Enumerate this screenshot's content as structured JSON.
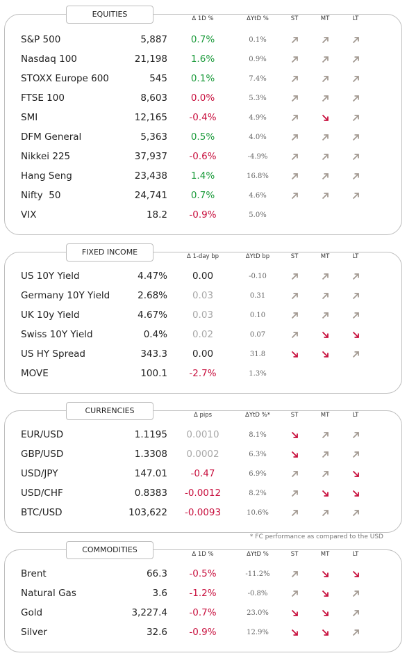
{
  "sections": [
    {
      "title": "EQUITIES",
      "headers": [
        "Δ 1D %",
        "ΔYtD %",
        "ST",
        "MT",
        "LT"
      ],
      "rows": [
        {
          "name": "S&P 500",
          "value": "5,887",
          "change": "0.7%",
          "ytd": "0.1%",
          "change_color": "#1a9a3a",
          "trends": [
            "up",
            "up",
            "up"
          ]
        },
        {
          "name": "Nasdaq 100",
          "value": "21,198",
          "change": "1.6%",
          "ytd": "0.9%",
          "change_color": "#1a9a3a",
          "trends": [
            "up",
            "up",
            "up"
          ]
        },
        {
          "name": "STOXX Europe 600",
          "value": "545",
          "change": "0.1%",
          "ytd": "7.4%",
          "change_color": "#1a9a3a",
          "trends": [
            "up",
            "up",
            "up"
          ]
        },
        {
          "name": "FTSE 100",
          "value": "8,603",
          "change": "0.0%",
          "ytd": "5.3%",
          "change_color": "#c8103e",
          "trends": [
            "up",
            "up",
            "up"
          ]
        },
        {
          "name": "SMI",
          "value": "12,165",
          "change": "-0.4%",
          "ytd": "4.9%",
          "change_color": "#c8103e",
          "trends": [
            "up",
            "down",
            "up"
          ]
        },
        {
          "name": "DFM General",
          "value": "5,363",
          "change": "0.5%",
          "ytd": "4.0%",
          "change_color": "#1a9a3a",
          "trends": [
            "up",
            "up",
            "up"
          ]
        },
        {
          "name": "Nikkei 225",
          "value": "37,937",
          "change": "-0.6%",
          "ytd": "-4.9%",
          "change_color": "#c8103e",
          "trends": [
            "up",
            "up",
            "up"
          ]
        },
        {
          "name": "Hang Seng",
          "value": "23,438",
          "change": "1.4%",
          "ytd": "16.8%",
          "change_color": "#1a9a3a",
          "trends": [
            "up",
            "up",
            "up"
          ]
        },
        {
          "name": "Nifty  50",
          "value": "24,741",
          "change": "0.7%",
          "ytd": "4.6%",
          "change_color": "#1a9a3a",
          "trends": [
            "up",
            "up",
            "up"
          ]
        },
        {
          "name": "VIX",
          "value": "18.2",
          "change": "-0.9%",
          "ytd": "5.0%",
          "change_color": "#c8103e",
          "trends": []
        }
      ]
    },
    {
      "title": "FIXED INCOME",
      "headers": [
        "Δ 1-day bp",
        "ΔYtD bp",
        "ST",
        "MT",
        "LT"
      ],
      "rows": [
        {
          "name": "US 10Y Yield",
          "value": "4.47%",
          "change": "0.00",
          "ytd": "-0.10",
          "change_color": "#222222",
          "trends": [
            "up",
            "up",
            "up"
          ]
        },
        {
          "name": "Germany 10Y Yield",
          "value": "2.68%",
          "change": "0.03",
          "ytd": "0.31",
          "change_color": "#a8a8a8",
          "trends": [
            "up",
            "up",
            "up"
          ]
        },
        {
          "name": "UK 10y Yield",
          "value": "4.67%",
          "change": "0.03",
          "ytd": "0.10",
          "change_color": "#a8a8a8",
          "trends": [
            "up",
            "up",
            "up"
          ]
        },
        {
          "name": "Swiss 10Y Yield",
          "value": "0.4%",
          "change": "0.02",
          "ytd": "0.07",
          "change_color": "#a8a8a8",
          "trends": [
            "up",
            "down",
            "down"
          ]
        },
        {
          "name": "US HY Spread",
          "value": "343.3",
          "change": "0.00",
          "ytd": "31.8",
          "change_color": "#222222",
          "trends": [
            "down",
            "down",
            "up"
          ]
        },
        {
          "name": "MOVE",
          "value": "100.1",
          "change": "-2.7%",
          "ytd": "1.3%",
          "change_color": "#c8103e",
          "trends": []
        }
      ]
    },
    {
      "title": "CURRENCIES",
      "headers": [
        "Δ pips",
        "ΔYtD %*",
        "ST",
        "MT",
        "LT"
      ],
      "rows": [
        {
          "name": "EUR/USD",
          "value": "1.1195",
          "change": "0.0010",
          "ytd": "8.1%",
          "change_color": "#a8a8a8",
          "trends": [
            "down",
            "up",
            "up"
          ]
        },
        {
          "name": "GBP/USD",
          "value": "1.3308",
          "change": "0.0002",
          "ytd": "6.3%",
          "change_color": "#a8a8a8",
          "trends": [
            "down",
            "up",
            "up"
          ]
        },
        {
          "name": "USD/JPY",
          "value": "147.01",
          "change": "-0.47",
          "ytd": "6.9%",
          "change_color": "#c8103e",
          "trends": [
            "up",
            "up",
            "down"
          ]
        },
        {
          "name": "USD/CHF",
          "value": "0.8383",
          "change": "-0.0012",
          "ytd": "8.2%",
          "change_color": "#c8103e",
          "trends": [
            "up",
            "down",
            "down"
          ]
        },
        {
          "name": "BTC/USD",
          "value": "103,622",
          "change": "-0.0093",
          "ytd": "10.6%",
          "change_color": "#c8103e",
          "trends": [
            "up",
            "up",
            "up"
          ]
        }
      ]
    },
    {
      "title": "COMMODITIES",
      "headers": [
        "Δ 1D %",
        "ΔYtD %",
        "ST",
        "MT",
        "LT"
      ],
      "rows": [
        {
          "name": "Brent",
          "value": "66.3",
          "change": "-0.5%",
          "ytd": "-11.2%",
          "change_color": "#c8103e",
          "trends": [
            "up",
            "down",
            "down"
          ]
        },
        {
          "name": "Natural Gas",
          "value": "3.6",
          "change": "-1.2%",
          "ytd": "-0.8%",
          "change_color": "#c8103e",
          "trends": [
            "up",
            "down",
            "up"
          ]
        },
        {
          "name": "Gold",
          "value": "3,227.4",
          "change": "-0.7%",
          "ytd": "23.0%",
          "change_color": "#c8103e",
          "trends": [
            "down",
            "down",
            "up"
          ]
        },
        {
          "name": "Silver",
          "value": "32.6",
          "change": "-0.9%",
          "ytd": "12.9%",
          "change_color": "#c8103e",
          "trends": [
            "down",
            "down",
            "up"
          ]
        }
      ]
    }
  ],
  "footnote": "* FC performance as compared to the USD"
}
